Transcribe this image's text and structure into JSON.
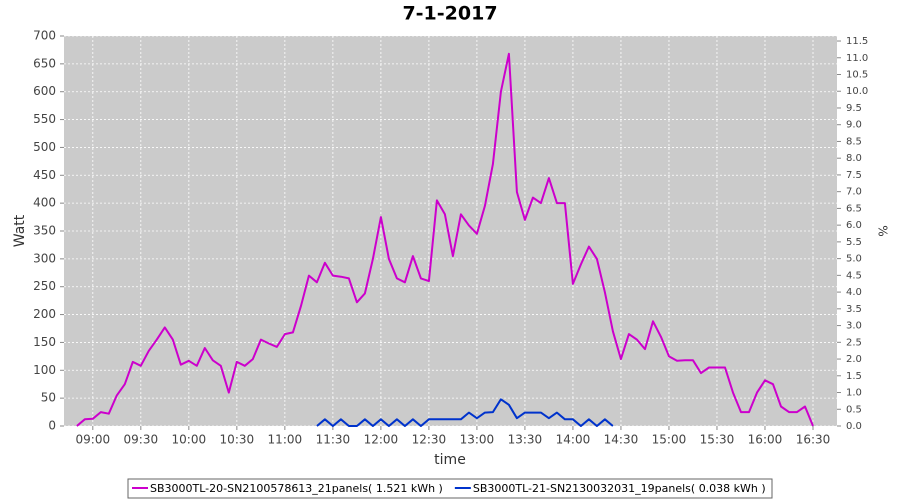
{
  "chart_data": {
    "type": "line",
    "title": "7-1-2017",
    "x_label": "time",
    "y_label": "Watt",
    "y2_label": "%",
    "xlim": [
      "08:42",
      "16:45"
    ],
    "xticks": [
      "09:00",
      "09:30",
      "10:00",
      "10:30",
      "11:00",
      "11:30",
      "12:00",
      "12:30",
      "13:00",
      "13:30",
      "14:00",
      "14:30",
      "15:00",
      "15:30",
      "16:00",
      "16:30"
    ],
    "ylim": [
      0,
      700
    ],
    "yticks": [
      0,
      50,
      100,
      150,
      200,
      250,
      300,
      350,
      400,
      450,
      500,
      550,
      600,
      650,
      700
    ],
    "y2lim": [
      0,
      11.65
    ],
    "y2ticks": [
      {
        "value": 0,
        "label": "0.0"
      },
      {
        "value": 0.5,
        "label": "0.5"
      },
      {
        "value": 1,
        "label": "1.0"
      },
      {
        "value": 1.5,
        "label": "1.5"
      },
      {
        "value": 2,
        "label": "2.0"
      },
      {
        "value": 2.5,
        "label": "2.5"
      },
      {
        "value": 3,
        "label": "3.0"
      },
      {
        "value": 3.5,
        "label": "3.5"
      },
      {
        "value": 4,
        "label": "4.0"
      },
      {
        "value": 4.5,
        "label": "4.5"
      },
      {
        "value": 5,
        "label": "5.0"
      },
      {
        "value": 5.5,
        "label": "5.5"
      },
      {
        "value": 6,
        "label": "6.0"
      },
      {
        "value": 6.5,
        "label": "6.5"
      },
      {
        "value": 7,
        "label": "7.0"
      },
      {
        "value": 7.5,
        "label": "7.5"
      },
      {
        "value": 8,
        "label": "8.0"
      },
      {
        "value": 8.5,
        "label": "8.5"
      },
      {
        "value": 9,
        "label": "9.0"
      },
      {
        "value": 9.5,
        "label": "9.5"
      },
      {
        "value": 10,
        "label": "10.0"
      },
      {
        "value": 10.5,
        "label": "10.5"
      },
      {
        "value": 11,
        "label": "11.0"
      },
      {
        "value": 11.5,
        "label": "11.5"
      }
    ],
    "grid": true,
    "series": [
      {
        "name": "SB3000TL-20-SN2100578613_21panels( 1.521 kWh )",
        "color": "#cc00cc",
        "x": [
          "08:50",
          "08:55",
          "09:00",
          "09:05",
          "09:10",
          "09:15",
          "09:20",
          "09:25",
          "09:30",
          "09:35",
          "09:40",
          "09:45",
          "09:50",
          "09:55",
          "10:00",
          "10:05",
          "10:10",
          "10:15",
          "10:20",
          "10:25",
          "10:30",
          "10:35",
          "10:40",
          "10:45",
          "10:50",
          "10:55",
          "11:00",
          "11:05",
          "11:10",
          "11:15",
          "11:20",
          "11:25",
          "11:30",
          "11:35",
          "11:40",
          "11:45",
          "11:50",
          "11:55",
          "12:00",
          "12:05",
          "12:10",
          "12:15",
          "12:20",
          "12:25",
          "12:30",
          "12:35",
          "12:40",
          "12:45",
          "12:50",
          "12:55",
          "13:00",
          "13:05",
          "13:10",
          "13:15",
          "13:20",
          "13:25",
          "13:30",
          "13:35",
          "13:40",
          "13:45",
          "13:50",
          "13:55",
          "14:00",
          "14:05",
          "14:10",
          "14:15",
          "14:20",
          "14:25",
          "14:30",
          "14:35",
          "14:40",
          "14:45",
          "14:50",
          "14:55",
          "15:00",
          "15:05",
          "15:10",
          "15:15",
          "15:20",
          "15:25",
          "15:30",
          "15:35",
          "15:40",
          "15:45",
          "15:50",
          "15:55",
          "16:00",
          "16:05",
          "16:10",
          "16:15",
          "16:20",
          "16:25",
          "16:30"
        ],
        "values": [
          0,
          12,
          13,
          25,
          22,
          55,
          75,
          115,
          108,
          135,
          155,
          177,
          155,
          110,
          117,
          108,
          140,
          118,
          108,
          60,
          115,
          108,
          120,
          155,
          148,
          142,
          165,
          168,
          215,
          270,
          258,
          293,
          270,
          268,
          265,
          222,
          238,
          300,
          375,
          300,
          265,
          258,
          305,
          265,
          260,
          405,
          380,
          305,
          380,
          360,
          345,
          395,
          470,
          600,
          668,
          420,
          370,
          410,
          400,
          445,
          400,
          400,
          255,
          290,
          322,
          300,
          240,
          170,
          120,
          165,
          155,
          138,
          188,
          160,
          125,
          117,
          118,
          118,
          95,
          105,
          105,
          105,
          60,
          25,
          25,
          60,
          82,
          75,
          35,
          25,
          25,
          35,
          0
        ]
      },
      {
        "name": "SB3000TL-21-SN2130032031_19panels( 0.038 kWh )",
        "color": "#0033cc",
        "x": [
          "11:20",
          "11:25",
          "11:30",
          "11:35",
          "11:40",
          "11:45",
          "11:50",
          "11:55",
          "12:00",
          "12:05",
          "12:10",
          "12:15",
          "12:20",
          "12:25",
          "12:30",
          "12:35",
          "12:40",
          "12:45",
          "12:50",
          "12:55",
          "13:00",
          "13:05",
          "13:10",
          "13:15",
          "13:20",
          "13:25",
          "13:30",
          "13:35",
          "13:40",
          "13:45",
          "13:50",
          "13:55",
          "14:00",
          "14:05",
          "14:10",
          "14:15",
          "14:20",
          "14:25"
        ],
        "values": [
          0,
          12,
          0,
          12,
          0,
          0,
          12,
          0,
          12,
          0,
          12,
          0,
          12,
          0,
          12,
          12,
          12,
          12,
          12,
          24,
          14,
          24,
          25,
          48,
          38,
          14,
          24,
          24,
          24,
          14,
          24,
          12,
          12,
          0,
          12,
          0,
          12,
          0
        ]
      }
    ],
    "legend": "bottom"
  }
}
